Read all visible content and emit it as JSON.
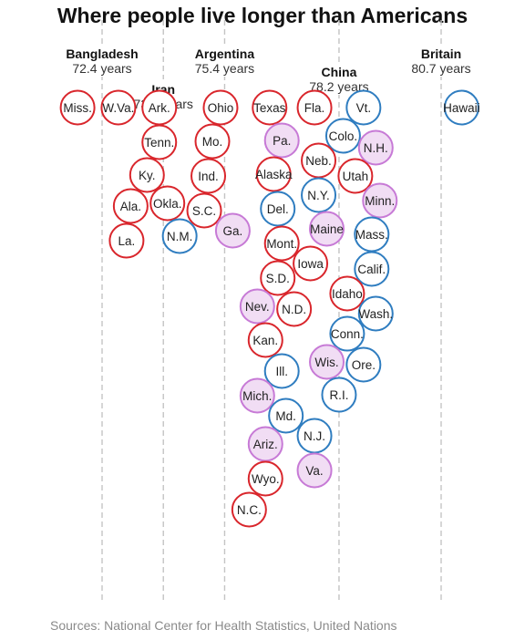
{
  "title": "Where people live longer than Americans",
  "source": "Sources: National Center for Health Statistics, United Nations",
  "colors": {
    "red": "#d9262c",
    "red_fill": "#ffffff",
    "purple": "#c77ad6",
    "purple_fill": "#f1ddf4",
    "blue": "#2f7dc0",
    "blue_fill": "#ffffff"
  },
  "chart_data": {
    "type": "scatter",
    "subtype": "beeswarm",
    "title": "Where people live longer than Americans",
    "x_unit": "years",
    "xlim": [
      71.2,
      81.8
    ],
    "grid": false,
    "reference_lines": [
      {
        "name": "Bangladesh",
        "value_label": "72.4 years",
        "x": 72.4
      },
      {
        "name": "Iran",
        "value_label": "73.9 years",
        "x": 73.9
      },
      {
        "name": "Argentina",
        "value_label": "75.4 years",
        "x": 75.4
      },
      {
        "name": "China",
        "value_label": "78.2 years",
        "x": 78.2
      },
      {
        "name": "Britain",
        "value_label": "80.7 years",
        "x": 80.7
      }
    ],
    "points": [
      {
        "label": "Texas",
        "x": 76.5,
        "color": "red"
      },
      {
        "label": "Pa.",
        "x": 76.8,
        "color": "purple"
      },
      {
        "label": "Alaska",
        "x": 76.6,
        "color": "red"
      },
      {
        "label": "Del.",
        "x": 76.7,
        "color": "blue"
      },
      {
        "label": "Vt.",
        "x": 78.8,
        "color": "blue"
      },
      {
        "label": "Colo.",
        "x": 78.3,
        "color": "blue"
      },
      {
        "label": "Mont.",
        "x": 76.8,
        "color": "red"
      },
      {
        "label": "N.H.",
        "x": 79.1,
        "color": "purple"
      },
      {
        "label": "Utah",
        "x": 78.6,
        "color": "red"
      },
      {
        "label": "S.D.",
        "x": 76.7,
        "color": "red"
      },
      {
        "label": "Ark.",
        "x": 73.8,
        "color": "red"
      },
      {
        "label": "Ohio",
        "x": 75.3,
        "color": "red"
      },
      {
        "label": "Minn.",
        "x": 79.2,
        "color": "purple"
      },
      {
        "label": "Nev.",
        "x": 76.2,
        "color": "purple"
      },
      {
        "label": "Fla.",
        "x": 77.6,
        "color": "red"
      },
      {
        "label": "Tenn.",
        "x": 73.8,
        "color": "red"
      },
      {
        "label": "Mo.",
        "x": 75.1,
        "color": "red"
      },
      {
        "label": "N.D.",
        "x": 77.1,
        "color": "red"
      },
      {
        "label": "Miss.",
        "x": 71.8,
        "color": "red"
      },
      {
        "label": "Mass.",
        "x": 79.0,
        "color": "blue"
      },
      {
        "label": "Ky.",
        "x": 73.5,
        "color": "red"
      },
      {
        "label": "Neb.",
        "x": 77.7,
        "color": "red"
      },
      {
        "label": "Ind.",
        "x": 75.0,
        "color": "red"
      },
      {
        "label": "Hawaii",
        "x": 81.2,
        "color": "blue"
      },
      {
        "label": "W.Va.",
        "x": 72.8,
        "color": "red"
      },
      {
        "label": "Kan.",
        "x": 76.4,
        "color": "red"
      },
      {
        "label": "Calif.",
        "x": 79.0,
        "color": "blue"
      },
      {
        "label": "N.Y.",
        "x": 77.7,
        "color": "blue"
      },
      {
        "label": "S.C.",
        "x": 74.9,
        "color": "red"
      },
      {
        "label": "Ala.",
        "x": 73.1,
        "color": "red"
      },
      {
        "label": "Ill.",
        "x": 76.8,
        "color": "blue"
      },
      {
        "label": "Idaho",
        "x": 78.4,
        "color": "red"
      },
      {
        "label": "Mich.",
        "x": 76.2,
        "color": "purple"
      },
      {
        "label": "Okla.",
        "x": 74.0,
        "color": "red"
      },
      {
        "label": "Wash.",
        "x": 79.1,
        "color": "blue"
      },
      {
        "label": "La.",
        "x": 73.0,
        "color": "red"
      },
      {
        "label": "Maine",
        "x": 77.9,
        "color": "purple"
      },
      {
        "label": "Md.",
        "x": 76.9,
        "color": "blue"
      },
      {
        "label": "N.M.",
        "x": 74.3,
        "color": "blue"
      },
      {
        "label": "Conn.",
        "x": 78.4,
        "color": "blue"
      },
      {
        "label": "Ariz.",
        "x": 76.4,
        "color": "purple"
      },
      {
        "label": "Iowa",
        "x": 77.5,
        "color": "red"
      },
      {
        "label": "Ga.",
        "x": 75.6,
        "color": "purple"
      },
      {
        "label": "Ore.",
        "x": 78.8,
        "color": "blue"
      },
      {
        "label": "Wis.",
        "x": 77.9,
        "color": "purple"
      },
      {
        "label": "Wyo.",
        "x": 76.4,
        "color": "red"
      },
      {
        "label": "R.I.",
        "x": 78.2,
        "color": "blue"
      },
      {
        "label": "N.C.",
        "x": 76.0,
        "color": "red"
      },
      {
        "label": "N.J.",
        "x": 77.6,
        "color": "blue"
      },
      {
        "label": "Va.",
        "x": 77.6,
        "color": "purple"
      }
    ]
  }
}
